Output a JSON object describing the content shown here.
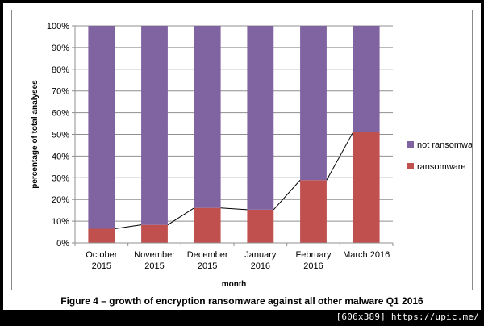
{
  "chart_data": {
    "type": "bar",
    "stacked": true,
    "categories": [
      [
        "October",
        "2015"
      ],
      [
        "November",
        "2015"
      ],
      [
        "December",
        "2015"
      ],
      [
        "January",
        "2016"
      ],
      [
        "February",
        "2016"
      ],
      [
        "March 2016"
      ]
    ],
    "series": [
      {
        "name": "ransomware",
        "color": "#c0504d",
        "values": [
          6.5,
          8.3,
          16.1,
          15.3,
          28.9,
          51.0
        ]
      },
      {
        "name": "not ransomware",
        "color": "#8064a2",
        "values": [
          93.5,
          91.7,
          83.9,
          84.7,
          71.1,
          49.0
        ]
      }
    ],
    "trend_line": {
      "series": "ransomware",
      "color": "#000000"
    },
    "legend": [
      "not ransomware",
      "ransomware"
    ],
    "legend_position": "right",
    "xlabel": "month",
    "ylabel": "percentage of total analyses",
    "ylim": [
      0,
      100
    ],
    "yticks": [
      "0%",
      "10%",
      "20%",
      "30%",
      "40%",
      "50%",
      "60%",
      "70%",
      "80%",
      "90%",
      "100%"
    ],
    "grid": true
  },
  "caption": "Figure 4 – growth of encryption ransomware against all other malware Q1 2016",
  "footer": "[606x389] https://upic.me/"
}
